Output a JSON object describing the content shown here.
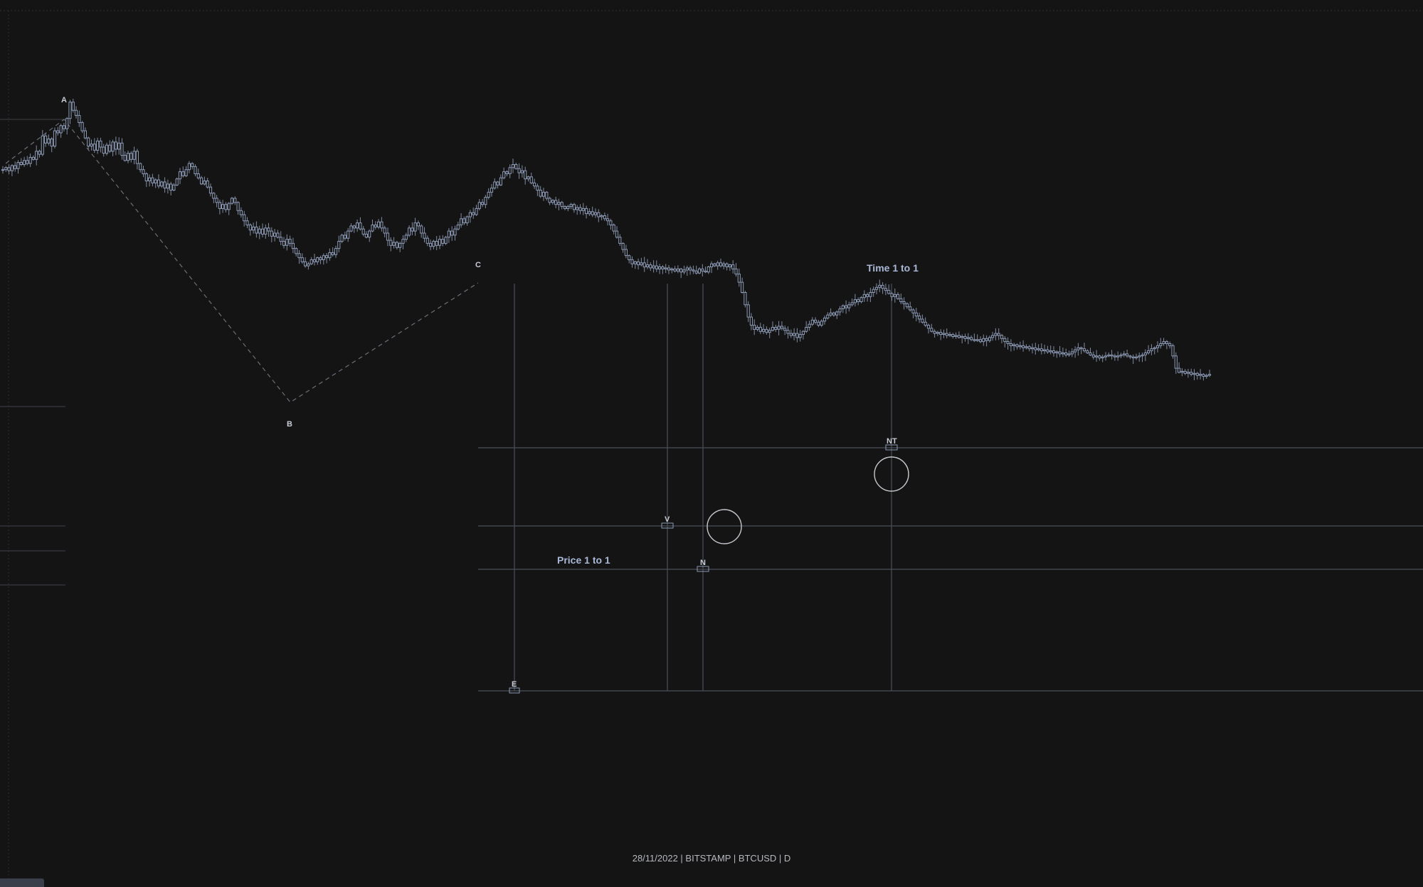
{
  "footer": {
    "caption": "28/11/2022 | BITSTAMP | BTCUSD | D"
  },
  "colors": {
    "background": "#141414",
    "candle": "#8d9ab5",
    "grid_line": "#4a4f59",
    "annotation_text": "#aab8d8"
  },
  "chart_data": {
    "type": "candlestick",
    "symbol": "BTCUSD",
    "exchange": "BITSTAMP",
    "interval": "D",
    "date": "28/11/2022",
    "grid": false,
    "title": "",
    "xlabel": "",
    "ylabel": "",
    "pivots": [
      {
        "label": "A",
        "index": 22
      },
      {
        "label": "B",
        "index": 100
      },
      {
        "label": "C",
        "index": 167
      }
    ],
    "markers": [
      {
        "label": "E",
        "index": 181
      },
      {
        "label": "V",
        "index": 235
      },
      {
        "label": "N",
        "index": 248
      },
      {
        "label": "NT",
        "index": 314
      }
    ],
    "annotations": [
      {
        "text": "Time 1 to 1"
      },
      {
        "text": "Price 1 to 1"
      }
    ],
    "closes": [
      112,
      114,
      111,
      116,
      113,
      119,
      117,
      121,
      118,
      124,
      122,
      130,
      127,
      145,
      138,
      142,
      135,
      150,
      148,
      155,
      152,
      162,
      178,
      170,
      165,
      158,
      150,
      143,
      135,
      137,
      131,
      140,
      134,
      128,
      136,
      130,
      139,
      132,
      138,
      126,
      121,
      128,
      122,
      130,
      118,
      112,
      108,
      101,
      104,
      99,
      102,
      96,
      100,
      94,
      98,
      92,
      97,
      103,
      110,
      106,
      112,
      118,
      115,
      108,
      104,
      98,
      101,
      95,
      89,
      84,
      80,
      74,
      78,
      73,
      79,
      84,
      80,
      72,
      68,
      62,
      58,
      53,
      56,
      50,
      54,
      49,
      55,
      52,
      47,
      50,
      46,
      42,
      38,
      44,
      40,
      35,
      30,
      26,
      22,
      18,
      20,
      24,
      22,
      26,
      24,
      28,
      26,
      31,
      29,
      35,
      42,
      48,
      45,
      52,
      57,
      55,
      60,
      54,
      49,
      46,
      52,
      58,
      56,
      61,
      55,
      50,
      43,
      38,
      41,
      36,
      40,
      44,
      48,
      55,
      52,
      60,
      57,
      50,
      45,
      40,
      37,
      42,
      38,
      44,
      40,
      46,
      52,
      48,
      54,
      58,
      64,
      60,
      66,
      70,
      68,
      74,
      80,
      78,
      85,
      90,
      94,
      100,
      97,
      104,
      110,
      108,
      114,
      117,
      113,
      109,
      111,
      103,
      105,
      99,
      96,
      92,
      86,
      90,
      84,
      80,
      82,
      78,
      80,
      76,
      74,
      76,
      78,
      73,
      75,
      72,
      74,
      69,
      71,
      68,
      70,
      66,
      67,
      64,
      62,
      58,
      52,
      46,
      40,
      34,
      28,
      24,
      20,
      22,
      19,
      21,
      17,
      19,
      16,
      18,
      15,
      17,
      15,
      16,
      14,
      15,
      13,
      15,
      12,
      14,
      16,
      14,
      13,
      11,
      15,
      13,
      12,
      17,
      20,
      18,
      21,
      18,
      20,
      17,
      19,
      15,
      10,
      2,
      -8,
      -20,
      -32,
      -40,
      -44,
      -42,
      -46,
      -44,
      -47,
      -45,
      -42,
      -44,
      -41,
      -43,
      -45,
      -48,
      -50,
      -48,
      -52,
      -49,
      -46,
      -42,
      -39,
      -35,
      -37,
      -40,
      -36,
      -33,
      -30,
      -28,
      -30,
      -27,
      -24,
      -21,
      -23,
      -20,
      -18,
      -15,
      -17,
      -13,
      -10,
      -12,
      -8,
      -5,
      -3,
      -1,
      -4,
      -6,
      -9,
      -12,
      -10,
      -14,
      -17,
      -19,
      -22,
      -25,
      -28,
      -31,
      -34,
      -37,
      -40,
      -43,
      -46,
      -48,
      -47,
      -49,
      -48,
      -50,
      -49,
      -51,
      -50,
      -52,
      -51,
      -53,
      -52,
      -54,
      -55,
      -54,
      -56,
      -53,
      -55,
      -52,
      -50,
      -48,
      -50,
      -53,
      -56,
      -58,
      -60,
      -59,
      -61,
      -60,
      -62,
      -61,
      -63,
      -62,
      -64,
      -63,
      -65,
      -64,
      -66,
      -65,
      -67,
      -66,
      -68,
      -67,
      -69,
      -68,
      -66,
      -64,
      -62,
      -63,
      -65,
      -67,
      -69,
      -71,
      -70,
      -72,
      -71,
      -70,
      -69,
      -70,
      -71,
      -70,
      -69,
      -68,
      -70,
      -71,
      -72,
      -71,
      -70,
      -69,
      -67,
      -65,
      -63,
      -62,
      -60,
      -58,
      -56,
      -58,
      -60,
      -70,
      -82,
      -86,
      -85,
      -87,
      -86,
      -88,
      -87,
      -89,
      -88,
      -90,
      -89,
      -88
    ]
  }
}
